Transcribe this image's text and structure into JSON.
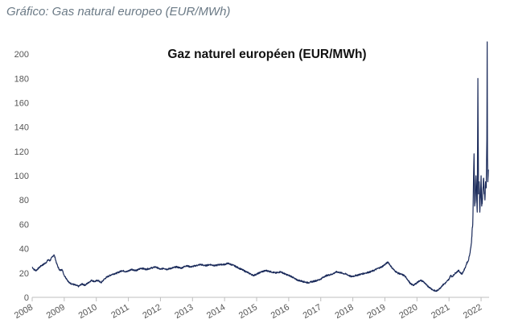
{
  "caption": "Gráfico: Gas natural europeo (EUR/MWh)",
  "colors": {
    "line": "#1a2a5a",
    "axis": "#bfbfbf",
    "text": "#555555",
    "caption": "#6b7a86"
  },
  "chart_data": {
    "type": "line",
    "title": "Gaz naturel européen (EUR/MWh)",
    "xlabel": "",
    "ylabel": "",
    "xlim": [
      2008.0,
      2022.25
    ],
    "ylim": [
      0,
      210
    ],
    "grid": false,
    "y_ticks": [
      0,
      20,
      40,
      60,
      80,
      100,
      120,
      140,
      160,
      180,
      200
    ],
    "x_tick_labels": [
      "2008",
      "2009",
      "2010",
      "2011",
      "2012",
      "2013",
      "2014",
      "2015",
      "2016",
      "2017",
      "2018",
      "2019",
      "2020",
      "2021",
      "2022"
    ],
    "series": [
      {
        "name": "Gaz naturel européen",
        "x": [
          2008.0,
          2008.05,
          2008.12,
          2008.2,
          2008.28,
          2008.35,
          2008.45,
          2008.5,
          2008.55,
          2008.62,
          2008.68,
          2008.72,
          2008.76,
          2008.82,
          2008.87,
          2008.93,
          2009.0,
          2009.08,
          2009.15,
          2009.25,
          2009.35,
          2009.45,
          2009.55,
          2009.65,
          2009.75,
          2009.85,
          2009.95,
          2010.05,
          2010.15,
          2010.25,
          2010.35,
          2010.5,
          2010.65,
          2010.8,
          2010.95,
          2011.1,
          2011.25,
          2011.4,
          2011.55,
          2011.7,
          2011.85,
          2012.0,
          2012.1,
          2012.2,
          2012.35,
          2012.5,
          2012.65,
          2012.8,
          2012.95,
          2013.1,
          2013.25,
          2013.4,
          2013.55,
          2013.7,
          2013.85,
          2014.0,
          2014.1,
          2014.2,
          2014.3,
          2014.45,
          2014.6,
          2014.75,
          2014.9,
          2015.0,
          2015.15,
          2015.3,
          2015.45,
          2015.6,
          2015.75,
          2015.9,
          2016.0,
          2016.1,
          2016.2,
          2016.3,
          2016.45,
          2016.6,
          2016.75,
          2016.9,
          2017.0,
          2017.1,
          2017.2,
          2017.35,
          2017.5,
          2017.65,
          2017.8,
          2017.95,
          2018.1,
          2018.25,
          2018.4,
          2018.55,
          2018.65,
          2018.72,
          2018.8,
          2018.9,
          2019.0,
          2019.1,
          2019.2,
          2019.3,
          2019.4,
          2019.5,
          2019.6,
          2019.7,
          2019.8,
          2019.9,
          2020.0,
          2020.1,
          2020.2,
          2020.3,
          2020.4,
          2020.5,
          2020.6,
          2020.7,
          2020.8,
          2020.9,
          2021.0,
          2021.05,
          2021.1,
          2021.2,
          2021.3,
          2021.4,
          2021.5,
          2021.55,
          2021.6,
          2021.65,
          2021.7,
          2021.72,
          2021.74,
          2021.76,
          2021.78,
          2021.8,
          2021.82,
          2021.84,
          2021.86,
          2021.88,
          2021.9,
          2021.92,
          2021.94,
          2021.96,
          2021.98,
          2022.0,
          2022.02,
          2022.04,
          2022.06,
          2022.08,
          2022.1,
          2022.12,
          2022.14,
          2022.16,
          2022.17,
          2022.18,
          2022.19,
          2022.2,
          2022.21,
          2022.22,
          2022.23
        ],
        "values": [
          25,
          23,
          22,
          24,
          26,
          27,
          29,
          31,
          30,
          33,
          35,
          32,
          28,
          24,
          22,
          23,
          18,
          15,
          12,
          11,
          10,
          9,
          11,
          10,
          12,
          14,
          13,
          14,
          12,
          15,
          17,
          19,
          20,
          22,
          21,
          23,
          22,
          24,
          23,
          24,
          25,
          23,
          24,
          23,
          24,
          25,
          24,
          26,
          25,
          26,
          27,
          26,
          27,
          26,
          27,
          27,
          28,
          27,
          26,
          24,
          22,
          20,
          18,
          19,
          21,
          22,
          21,
          20,
          21,
          19,
          18,
          17,
          15,
          14,
          13,
          12,
          13,
          14,
          15,
          17,
          18,
          19,
          21,
          20,
          19,
          17,
          18,
          19,
          20,
          21,
          22,
          23,
          24,
          25,
          27,
          29,
          25,
          22,
          20,
          19,
          18,
          15,
          11,
          10,
          12,
          14,
          13,
          10,
          8,
          6,
          5,
          7,
          10,
          12,
          15,
          18,
          17,
          20,
          22,
          19,
          24,
          28,
          30,
          36,
          45,
          55,
          60,
          90,
          118,
          75,
          80,
          100,
          85,
          70,
          180,
          85,
          95,
          70,
          82,
          100,
          75,
          80,
          90,
          98,
          85,
          80,
          95,
          90,
          110,
          130,
          210,
          115,
          95,
          100,
          105
        ]
      }
    ]
  }
}
